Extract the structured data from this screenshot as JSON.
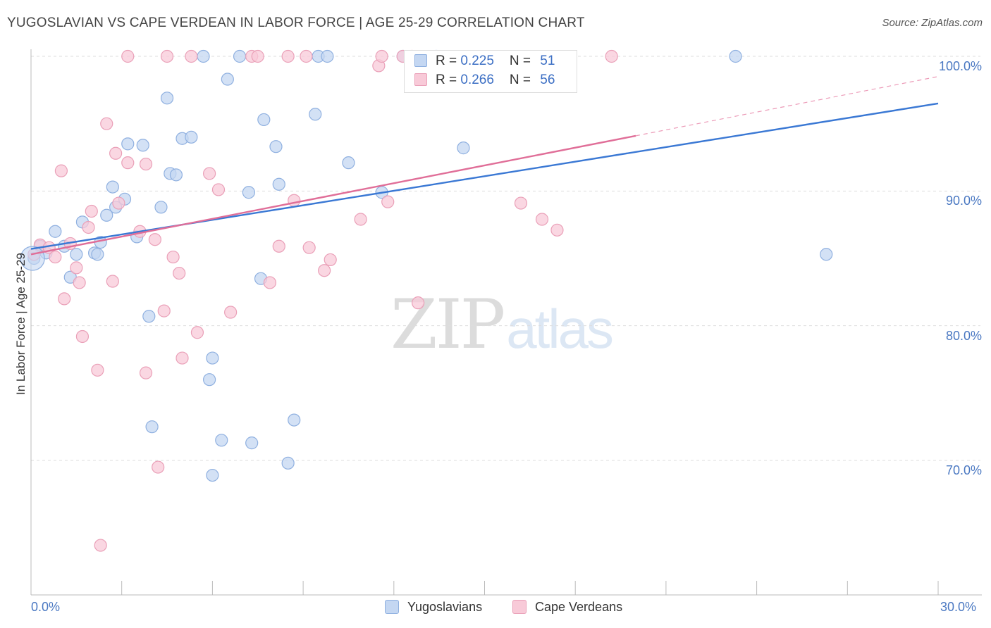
{
  "title": "YUGOSLAVIAN VS CAPE VERDEAN IN LABOR FORCE | AGE 25-29 CORRELATION CHART",
  "source": "Source: ZipAtlas.com",
  "watermark": {
    "zip": "ZIP",
    "atlas": "atlas"
  },
  "colors": {
    "blue_fill": "#c4d7f2",
    "blue_stroke": "#8fb0e0",
    "blue_line": "#3a78d4",
    "pink_fill": "#f8cad8",
    "pink_stroke": "#eaa0b8",
    "pink_line": "#e06e98",
    "grid": "#dddddd",
    "axis_text": "#4a78c2"
  },
  "legend": {
    "rows": [
      {
        "r_label": "R = ",
        "r_value": "0.225",
        "n_label": "N = ",
        "n_value": "51"
      },
      {
        "r_label": "R = ",
        "r_value": "0.266",
        "n_label": "N = ",
        "n_value": "56"
      }
    ]
  },
  "bottom_legend": {
    "series1": "Yugoslavians",
    "series2": "Cape Verdeans"
  },
  "chart_data": {
    "type": "scatter",
    "title": "YUGOSLAVIAN VS CAPE VERDEAN IN LABOR FORCE | AGE 25-29 CORRELATION CHART",
    "xlabel": "",
    "ylabel": "In Labor Force | Age 25-29",
    "xlim": [
      0,
      30
    ],
    "ylim": [
      60,
      100.5
    ],
    "x_tick_labels": [
      "0.0%",
      "30.0%"
    ],
    "y_tick_labels": [
      "70.0%",
      "80.0%",
      "90.0%",
      "100.0%"
    ],
    "y_tick_values": [
      70,
      80,
      90,
      100
    ],
    "series": [
      {
        "name": "Yugoslavians",
        "R": 0.225,
        "N": 51,
        "trend": {
          "x": [
            0,
            30
          ],
          "y": [
            85.7,
            96.5
          ]
        },
        "points": [
          [
            0.1,
            85.0
          ],
          [
            0.3,
            85.9
          ],
          [
            0.5,
            85.4
          ],
          [
            0.8,
            87.0
          ],
          [
            1.1,
            85.9
          ],
          [
            1.3,
            83.6
          ],
          [
            1.5,
            85.3
          ],
          [
            1.7,
            87.7
          ],
          [
            2.1,
            85.4
          ],
          [
            2.2,
            85.3
          ],
          [
            2.3,
            86.2
          ],
          [
            2.5,
            88.2
          ],
          [
            2.7,
            90.3
          ],
          [
            2.8,
            88.8
          ],
          [
            3.1,
            89.4
          ],
          [
            3.2,
            93.5
          ],
          [
            3.5,
            86.6
          ],
          [
            3.7,
            93.4
          ],
          [
            3.9,
            80.7
          ],
          [
            4.0,
            72.5
          ],
          [
            4.3,
            88.8
          ],
          [
            4.5,
            96.9
          ],
          [
            4.6,
            91.3
          ],
          [
            4.8,
            91.2
          ],
          [
            5.0,
            93.9
          ],
          [
            5.3,
            94.0
          ],
          [
            5.7,
            100.0
          ],
          [
            5.9,
            76.0
          ],
          [
            6.0,
            68.9
          ],
          [
            6.0,
            77.6
          ],
          [
            6.3,
            71.5
          ],
          [
            6.5,
            98.3
          ],
          [
            6.9,
            100.0
          ],
          [
            7.2,
            89.9
          ],
          [
            7.3,
            71.3
          ],
          [
            7.6,
            83.5
          ],
          [
            7.7,
            95.3
          ],
          [
            8.1,
            93.3
          ],
          [
            8.2,
            90.5
          ],
          [
            8.5,
            69.8
          ],
          [
            8.7,
            73.0
          ],
          [
            9.4,
            95.7
          ],
          [
            9.5,
            100.0
          ],
          [
            9.8,
            100.0
          ],
          [
            10.5,
            92.1
          ],
          [
            11.6,
            89.9
          ],
          [
            12.3,
            100.0
          ],
          [
            13.4,
            100.0
          ],
          [
            14.3,
            93.2
          ],
          [
            23.3,
            100.0
          ],
          [
            26.3,
            85.3
          ]
        ]
      },
      {
        "name": "Cape Verdeans",
        "R": 0.266,
        "N": 56,
        "trend": {
          "x": [
            0,
            20
          ],
          "y": [
            85.3,
            94.1
          ]
        },
        "trend_dashed": {
          "x": [
            20,
            30
          ],
          "y": [
            94.1,
            98.5
          ]
        },
        "points": [
          [
            0.1,
            85.3
          ],
          [
            0.3,
            86.0
          ],
          [
            0.6,
            85.8
          ],
          [
            0.8,
            85.1
          ],
          [
            1.0,
            91.5
          ],
          [
            1.1,
            82.0
          ],
          [
            1.3,
            86.1
          ],
          [
            1.5,
            84.3
          ],
          [
            1.6,
            83.2
          ],
          [
            1.7,
            79.2
          ],
          [
            1.9,
            87.3
          ],
          [
            2.0,
            88.5
          ],
          [
            2.2,
            76.7
          ],
          [
            2.3,
            63.7
          ],
          [
            2.5,
            95.0
          ],
          [
            2.7,
            83.3
          ],
          [
            2.8,
            92.8
          ],
          [
            2.9,
            89.1
          ],
          [
            3.2,
            92.1
          ],
          [
            3.2,
            100.0
          ],
          [
            3.6,
            87.0
          ],
          [
            3.8,
            76.5
          ],
          [
            3.8,
            92.0
          ],
          [
            4.1,
            86.4
          ],
          [
            4.2,
            69.5
          ],
          [
            4.4,
            81.1
          ],
          [
            4.5,
            100.0
          ],
          [
            4.7,
            85.1
          ],
          [
            4.9,
            83.9
          ],
          [
            5.0,
            77.6
          ],
          [
            5.3,
            100.0
          ],
          [
            5.5,
            79.5
          ],
          [
            5.9,
            91.3
          ],
          [
            6.2,
            90.1
          ],
          [
            6.6,
            81.0
          ],
          [
            7.3,
            100.0
          ],
          [
            7.5,
            100.0
          ],
          [
            7.9,
            83.2
          ],
          [
            8.2,
            85.9
          ],
          [
            8.5,
            100.0
          ],
          [
            8.7,
            89.3
          ],
          [
            9.1,
            100.0
          ],
          [
            9.2,
            85.8
          ],
          [
            9.7,
            84.1
          ],
          [
            9.9,
            84.9
          ],
          [
            10.9,
            87.9
          ],
          [
            11.5,
            99.3
          ],
          [
            11.6,
            100.0
          ],
          [
            11.8,
            89.2
          ],
          [
            12.3,
            100.0
          ],
          [
            12.6,
            100.0
          ],
          [
            12.8,
            81.7
          ],
          [
            16.2,
            89.1
          ],
          [
            16.9,
            87.9
          ],
          [
            17.4,
            87.1
          ],
          [
            19.2,
            100.0
          ]
        ]
      }
    ]
  }
}
